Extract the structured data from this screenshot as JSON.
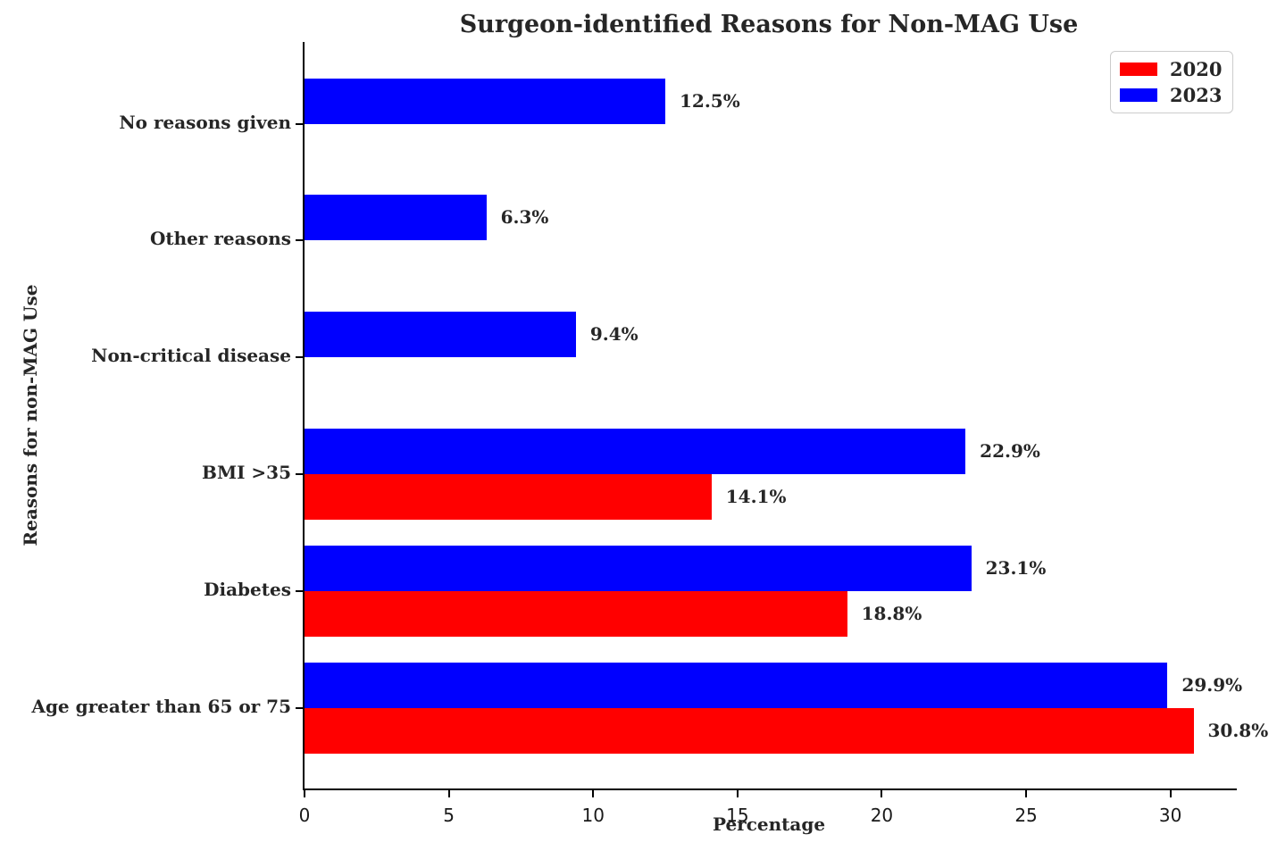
{
  "chart_data": {
    "type": "bar",
    "orientation": "horizontal",
    "title": "Surgeon-identified Reasons for Non-MAG Use",
    "xlabel": "Percentage",
    "ylabel": "Reasons for non-MAG Use",
    "xlim": [
      0,
      32.3
    ],
    "x_ticks": [
      0,
      5,
      10,
      15,
      20,
      25,
      30
    ],
    "grid": false,
    "legend_position": "upper right",
    "value_label_suffix": "%",
    "categories_top_to_bottom": [
      "No reasons given",
      "Other reasons",
      "Non-critical disease",
      "BMI >35",
      "Diabetes",
      "Age greater than 65 or 75"
    ],
    "series": [
      {
        "name": "2020",
        "color": "#ff0000",
        "placement": "below",
        "values": [
          null,
          null,
          null,
          14.1,
          18.8,
          30.8
        ]
      },
      {
        "name": "2023",
        "color": "#0000ff",
        "placement": "above",
        "values": [
          12.5,
          6.3,
          9.4,
          22.9,
          23.1,
          29.9
        ]
      }
    ]
  }
}
